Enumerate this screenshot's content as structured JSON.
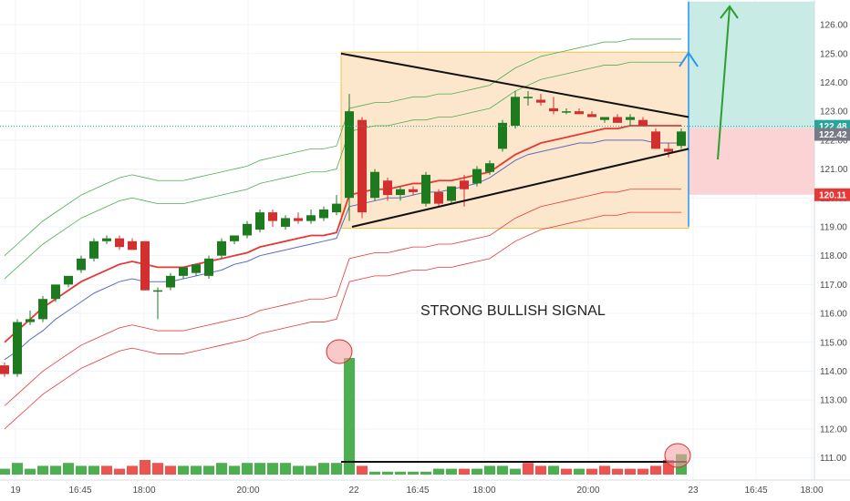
{
  "chart_data": {
    "type": "candlestick",
    "y_axis": {
      "min": 110.5,
      "max": 126.8,
      "ticks": [
        111,
        112,
        113,
        114,
        115,
        116,
        117,
        118,
        119,
        120,
        121,
        122,
        123,
        124,
        125,
        126
      ],
      "position": "right"
    },
    "x_ticks": [
      "19",
      "16:45",
      "18:00",
      "20:00",
      "22",
      "16:45",
      "18:00",
      "20:00",
      "23",
      "16:45",
      "18:00"
    ],
    "price_labels": [
      {
        "value": "122.48",
        "color": "#26a69a"
      },
      {
        "value": "122.42",
        "color": "#787b86"
      },
      {
        "value": "120.11",
        "color": "#e53935"
      }
    ],
    "annotation": "STRONG BULLISH SIGNAL",
    "candles": [
      [
        114.2,
        114.3,
        113.8,
        113.9
      ],
      [
        113.9,
        115.8,
        113.8,
        115.7
      ],
      [
        115.7,
        116.1,
        115.6,
        115.8
      ],
      [
        115.8,
        116.6,
        115.7,
        116.5
      ],
      [
        116.5,
        117.0,
        116.4,
        117.0
      ],
      [
        117.0,
        117.3,
        116.9,
        117.3
      ],
      [
        117.5,
        118.0,
        117.4,
        117.9
      ],
      [
        117.9,
        118.6,
        117.8,
        118.5
      ],
      [
        118.5,
        118.7,
        118.4,
        118.6
      ],
      [
        118.6,
        118.7,
        118.2,
        118.3
      ],
      [
        118.5,
        118.6,
        118.2,
        118.2
      ],
      [
        118.5,
        118.5,
        116.8,
        116.8
      ],
      [
        116.8,
        116.9,
        115.8,
        116.8
      ],
      [
        116.9,
        117.4,
        116.8,
        117.3
      ],
      [
        117.3,
        117.6,
        117.2,
        117.6
      ],
      [
        117.4,
        117.7,
        117.3,
        117.7
      ],
      [
        117.3,
        118.0,
        117.2,
        117.9
      ],
      [
        118.0,
        118.6,
        117.9,
        118.5
      ],
      [
        118.5,
        118.7,
        118.4,
        118.7
      ],
      [
        118.7,
        119.2,
        118.6,
        119.1
      ],
      [
        118.9,
        119.6,
        118.8,
        119.5
      ],
      [
        119.5,
        119.6,
        119.0,
        119.2
      ],
      [
        119.0,
        119.4,
        118.9,
        119.3
      ],
      [
        119.3,
        119.5,
        119.1,
        119.2
      ],
      [
        119.2,
        119.6,
        119.1,
        119.4
      ],
      [
        119.3,
        119.7,
        119.2,
        119.6
      ],
      [
        119.5,
        120.1,
        119.4,
        119.8
      ],
      [
        120.0,
        123.6,
        119.2,
        123.0
      ],
      [
        122.7,
        122.8,
        119.3,
        119.5
      ],
      [
        120.0,
        121.0,
        119.9,
        120.9
      ],
      [
        120.6,
        120.7,
        119.9,
        120.1
      ],
      [
        120.1,
        120.4,
        119.9,
        120.3
      ],
      [
        120.3,
        120.4,
        120.1,
        120.2
      ],
      [
        119.8,
        120.9,
        119.7,
        120.8
      ],
      [
        120.2,
        120.3,
        119.7,
        119.8
      ],
      [
        119.9,
        120.4,
        119.8,
        120.4
      ],
      [
        120.6,
        120.8,
        119.7,
        120.3
      ],
      [
        120.5,
        121.1,
        120.4,
        121.0
      ],
      [
        120.9,
        121.3,
        120.8,
        121.2
      ],
      [
        121.7,
        122.7,
        121.6,
        122.6
      ],
      [
        122.5,
        123.7,
        122.4,
        123.5
      ],
      [
        123.5,
        123.7,
        123.2,
        123.5
      ],
      [
        123.4,
        123.6,
        123.2,
        123.3
      ],
      [
        123.1,
        123.5,
        122.9,
        123.0
      ],
      [
        123.0,
        123.1,
        122.9,
        123.0
      ],
      [
        123.0,
        123.1,
        122.9,
        122.9
      ],
      [
        122.9,
        123.0,
        122.8,
        122.8
      ],
      [
        122.7,
        122.8,
        122.6,
        122.8
      ],
      [
        122.8,
        122.9,
        122.6,
        122.6
      ],
      [
        122.7,
        122.9,
        122.5,
        122.8
      ],
      [
        122.7,
        122.8,
        122.5,
        122.5
      ],
      [
        122.3,
        122.4,
        121.7,
        121.7
      ],
      [
        121.7,
        121.9,
        121.4,
        121.6
      ],
      [
        121.8,
        122.4,
        121.7,
        122.3
      ]
    ],
    "volume": [
      [
        2,
        1
      ],
      [
        4,
        1
      ],
      [
        2,
        1
      ],
      [
        3,
        1
      ],
      [
        3,
        1
      ],
      [
        4,
        1
      ],
      [
        3,
        1
      ],
      [
        3,
        1
      ],
      [
        3,
        0
      ],
      [
        2,
        0
      ],
      [
        3,
        0
      ],
      [
        5,
        0
      ],
      [
        4,
        0
      ],
      [
        3,
        0
      ],
      [
        3,
        1
      ],
      [
        3,
        1
      ],
      [
        3,
        1
      ],
      [
        4,
        1
      ],
      [
        3,
        1
      ],
      [
        4,
        1
      ],
      [
        4,
        1
      ],
      [
        4,
        1
      ],
      [
        4,
        1
      ],
      [
        3,
        1
      ],
      [
        3,
        1
      ],
      [
        4,
        1
      ],
      [
        4,
        1
      ],
      [
        40,
        1
      ],
      [
        3,
        0
      ],
      [
        1,
        1
      ],
      [
        1,
        1
      ],
      [
        1,
        1
      ],
      [
        1,
        1
      ],
      [
        1,
        1
      ],
      [
        2,
        1
      ],
      [
        2,
        1
      ],
      [
        2,
        0
      ],
      [
        2,
        1
      ],
      [
        3,
        1
      ],
      [
        3,
        1
      ],
      [
        2,
        1
      ],
      [
        4,
        0
      ],
      [
        3,
        0
      ],
      [
        3,
        1
      ],
      [
        2,
        0
      ],
      [
        2,
        1
      ],
      [
        2,
        0
      ],
      [
        3,
        0
      ],
      [
        2,
        0
      ],
      [
        2,
        0
      ],
      [
        2,
        0
      ],
      [
        3,
        0
      ],
      [
        5,
        0
      ],
      [
        7,
        1
      ]
    ],
    "bands": {
      "basis": [
        115.0,
        115.4,
        115.8,
        116.2,
        116.5,
        116.8,
        117.1,
        117.3,
        117.5,
        117.7,
        117.8,
        117.7,
        117.6,
        117.6,
        117.6,
        117.7,
        117.8,
        117.9,
        118.0,
        118.1,
        118.3,
        118.4,
        118.5,
        118.6,
        118.7,
        118.7,
        118.8,
        120.1,
        120.2,
        120.3,
        120.3,
        120.4,
        120.5,
        120.5,
        120.6,
        120.6,
        120.7,
        120.8,
        120.9,
        121.2,
        121.5,
        121.7,
        121.9,
        122.0,
        122.1,
        122.2,
        122.3,
        122.4,
        122.4,
        122.5,
        122.5,
        122.5,
        122.5,
        122.5
      ],
      "ma": [
        114.4,
        114.7,
        115.1,
        115.4,
        115.8,
        116.1,
        116.4,
        116.7,
        116.9,
        117.1,
        117.2,
        117.1,
        117.1,
        117.1,
        117.2,
        117.3,
        117.4,
        117.5,
        117.7,
        117.8,
        118.0,
        118.1,
        118.2,
        118.3,
        118.4,
        118.5,
        118.6,
        119.7,
        119.8,
        119.9,
        120.0,
        120.0,
        120.1,
        120.2,
        120.2,
        120.3,
        120.4,
        120.5,
        120.7,
        121.0,
        121.3,
        121.5,
        121.6,
        121.7,
        121.8,
        121.9,
        121.9,
        122.0,
        122.0,
        122.0,
        122.0,
        121.9,
        121.9,
        121.9
      ],
      "upper1": [
        117.2,
        117.6,
        118.0,
        118.4,
        118.7,
        119.0,
        119.3,
        119.5,
        119.7,
        119.9,
        120.0,
        119.9,
        119.8,
        119.8,
        119.8,
        119.9,
        120.0,
        120.1,
        120.2,
        120.3,
        120.5,
        120.6,
        120.7,
        120.8,
        120.9,
        120.9,
        121.0,
        122.3,
        122.4,
        122.5,
        122.5,
        122.6,
        122.7,
        122.7,
        122.8,
        122.8,
        122.9,
        123.0,
        123.1,
        123.4,
        123.7,
        123.9,
        124.1,
        124.2,
        124.3,
        124.4,
        124.5,
        124.6,
        124.6,
        124.7,
        124.7,
        124.7,
        124.7,
        124.7
      ],
      "upper2": [
        118.0,
        118.4,
        118.8,
        119.2,
        119.5,
        119.8,
        120.1,
        120.3,
        120.5,
        120.7,
        120.8,
        120.7,
        120.6,
        120.6,
        120.6,
        120.7,
        120.8,
        120.9,
        121.0,
        121.1,
        121.3,
        121.4,
        121.5,
        121.6,
        121.7,
        121.7,
        121.8,
        123.1,
        123.2,
        123.3,
        123.3,
        123.4,
        123.5,
        123.5,
        123.6,
        123.6,
        123.7,
        123.8,
        123.9,
        124.2,
        124.5,
        124.7,
        124.9,
        125.0,
        125.1,
        125.2,
        125.3,
        125.4,
        125.4,
        125.5,
        125.5,
        125.5,
        125.5,
        125.5
      ],
      "lower1": [
        112.8,
        113.2,
        113.6,
        114.0,
        114.3,
        114.6,
        114.9,
        115.1,
        115.3,
        115.5,
        115.6,
        115.5,
        115.4,
        115.4,
        115.4,
        115.5,
        115.6,
        115.7,
        115.8,
        115.9,
        116.1,
        116.2,
        116.3,
        116.4,
        116.5,
        116.5,
        116.6,
        117.9,
        118.0,
        118.1,
        118.1,
        118.2,
        118.3,
        118.3,
        118.4,
        118.4,
        118.5,
        118.6,
        118.7,
        119.0,
        119.3,
        119.5,
        119.7,
        119.8,
        119.9,
        120.0,
        120.1,
        120.2,
        120.2,
        120.3,
        120.3,
        120.3,
        120.3,
        120.3
      ],
      "lower2": [
        112.0,
        112.4,
        112.8,
        113.2,
        113.5,
        113.8,
        114.1,
        114.3,
        114.5,
        114.7,
        114.8,
        114.7,
        114.6,
        114.6,
        114.6,
        114.7,
        114.8,
        114.9,
        115.0,
        115.1,
        115.3,
        115.4,
        115.5,
        115.6,
        115.7,
        115.7,
        115.8,
        117.1,
        117.2,
        117.3,
        117.3,
        117.4,
        117.5,
        117.5,
        117.6,
        117.6,
        117.7,
        117.8,
        117.9,
        118.2,
        118.5,
        118.7,
        118.9,
        119.0,
        119.1,
        119.2,
        119.3,
        119.4,
        119.4,
        119.5,
        119.5,
        119.5,
        119.5,
        119.5
      ]
    },
    "consolidation_box": {
      "y_top": 125.05,
      "y_bottom": 118.95
    },
    "triangle": {
      "upper": [
        125.0,
        122.8
      ],
      "lower": [
        119.0,
        121.7
      ]
    },
    "position_tool": {
      "entry": 122.42,
      "stop": 120.11,
      "target": 126.8
    },
    "colors": {
      "up": "#1e7a1e",
      "down": "#d32f2f",
      "vol_up": "#4caf50",
      "vol_down": "#ef5350"
    }
  }
}
